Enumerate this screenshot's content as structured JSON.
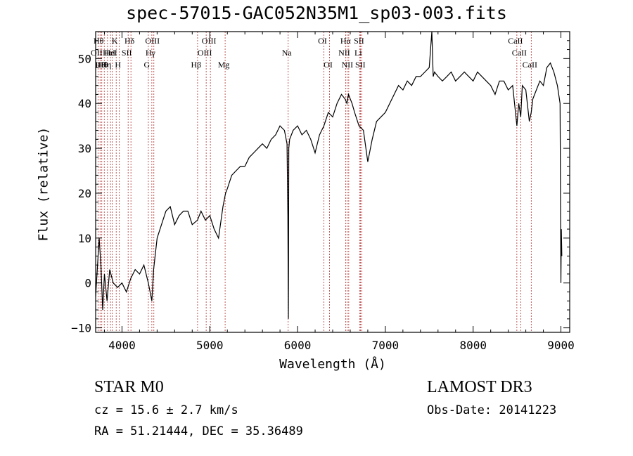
{
  "chart_data": {
    "type": "line",
    "title": "spec-57015-GAC052N35M1_sp03-003.fits",
    "xlabel": "Wavelength (Å)",
    "ylabel": "Flux (relative)",
    "xlim": [
      3700,
      9100
    ],
    "ylim": [
      -11,
      56
    ],
    "xticks": [
      4000,
      5000,
      6000,
      7000,
      8000,
      9000
    ],
    "yticks": [
      -10,
      0,
      10,
      20,
      30,
      40,
      50
    ],
    "grid": false,
    "series": [
      {
        "x": [
          3700,
          3740,
          3760,
          3780,
          3800,
          3830,
          3860,
          3900,
          3950,
          4000,
          4050,
          4100,
          4150,
          4200,
          4250,
          4300,
          4340,
          4360,
          4400,
          4450,
          4500,
          4550,
          4600,
          4650,
          4700,
          4750,
          4800,
          4860,
          4900,
          4950,
          5000,
          5050,
          5100,
          5150,
          5180,
          5200,
          5250,
          5300,
          5350,
          5400,
          5450,
          5500,
          5550,
          5600,
          5650,
          5700,
          5750,
          5800,
          5850,
          5880,
          5890,
          5895,
          5900,
          5910,
          5950,
          6000,
          6050,
          6100,
          6150,
          6200,
          6250,
          6300,
          6350,
          6400,
          6450,
          6500,
          6540,
          6563,
          6580,
          6620,
          6650,
          6700,
          6750,
          6800,
          6850,
          6900,
          6950,
          7000,
          7050,
          7100,
          7150,
          7200,
          7250,
          7300,
          7350,
          7400,
          7450,
          7500,
          7530,
          7545,
          7560,
          7600,
          7650,
          7700,
          7750,
          7800,
          7850,
          7900,
          7950,
          8000,
          8050,
          8100,
          8150,
          8200,
          8250,
          8300,
          8350,
          8400,
          8450,
          8498,
          8520,
          8542,
          8560,
          8600,
          8640,
          8662,
          8680,
          8720,
          8760,
          8800,
          8840,
          8880,
          8920,
          8960,
          8990,
          9000,
          9005,
          9010
        ],
        "values": [
          -3,
          10,
          4,
          -6,
          2,
          -4,
          3,
          0,
          -1,
          0,
          -2,
          1,
          3,
          2,
          4,
          0,
          -4,
          3,
          10,
          13,
          16,
          17,
          13,
          15,
          16,
          16,
          13,
          14,
          16,
          14,
          15,
          12,
          10,
          17,
          20,
          21,
          24,
          25,
          26,
          26,
          28,
          29,
          30,
          31,
          30,
          32,
          33,
          35,
          34,
          31,
          15,
          -8,
          30,
          32,
          34,
          35,
          33,
          34,
          32,
          29,
          33,
          35,
          38,
          37,
          40,
          42,
          41,
          40,
          42,
          40,
          38,
          35,
          34,
          27,
          32,
          36,
          37,
          38,
          40,
          42,
          44,
          43,
          45,
          44,
          46,
          46,
          47,
          48,
          56,
          46,
          47,
          46,
          45,
          46,
          47,
          45,
          46,
          47,
          46,
          45,
          47,
          46,
          45,
          44,
          42,
          45,
          45,
          43,
          44,
          35,
          40,
          37,
          44,
          43,
          36,
          38,
          41,
          43,
          45,
          44,
          48,
          49,
          47,
          44,
          40,
          0,
          12,
          6
        ]
      }
    ],
    "lines": [
      {
        "x": 3727,
        "label": "OII",
        "row": 2
      },
      {
        "x": 3750,
        "label": "Hθ",
        "row": 1
      },
      {
        "x": 3770,
        "label": "Hθ",
        "row": 3
      },
      {
        "x": 3798,
        "label": "Hθ",
        "row": 3
      },
      {
        "x": 3835,
        "label": "Hη",
        "row": 3
      },
      {
        "x": 3869,
        "label": "HeI",
        "row": 2
      },
      {
        "x": 3889,
        "label": "HeI",
        "row": 2
      },
      {
        "x": 3934,
        "label": "K",
        "row": 1
      },
      {
        "x": 3970,
        "label": "H",
        "row": 3
      },
      {
        "x": 4070,
        "label": "SII",
        "row": 2
      },
      {
        "x": 4102,
        "label": "Hδ",
        "row": 1
      },
      {
        "x": 4300,
        "label": "G",
        "row": 3
      },
      {
        "x": 4340,
        "label": "Hγ",
        "row": 2
      },
      {
        "x": 4363,
        "label": "OIII",
        "row": 1
      },
      {
        "x": 4861,
        "label": "Hβ",
        "row": 3
      },
      {
        "x": 4959,
        "label": "OIII",
        "row": 2
      },
      {
        "x": 5007,
        "label": "OIII",
        "row": 1
      },
      {
        "x": 5175,
        "label": "Mg",
        "row": 3
      },
      {
        "x": 5893,
        "label": "Na",
        "row": 2
      },
      {
        "x": 6300,
        "label": "OI",
        "row": 1
      },
      {
        "x": 6364,
        "label": "OI",
        "row": 3
      },
      {
        "x": 6548,
        "label": "NII",
        "row": 2
      },
      {
        "x": 6563,
        "label": "Hα",
        "row": 1
      },
      {
        "x": 6583,
        "label": "NII",
        "row": 3
      },
      {
        "x": 6707,
        "label": "Li",
        "row": 2
      },
      {
        "x": 6716,
        "label": "SII",
        "row": 1
      },
      {
        "x": 6731,
        "label": "SII",
        "row": 3
      },
      {
        "x": 8498,
        "label": "CaII",
        "row": 1
      },
      {
        "x": 8542,
        "label": "CaII",
        "row": 2
      },
      {
        "x": 8662,
        "label": "CaII",
        "row": 3
      }
    ]
  },
  "info": {
    "class": "STAR    M0",
    "survey": "LAMOST DR3",
    "cz": "cz = 15.6 ± 2.7 km/s",
    "obs_date": "Obs-Date: 20141223",
    "coords": "RA =  51.21444, DEC =  35.36489"
  }
}
